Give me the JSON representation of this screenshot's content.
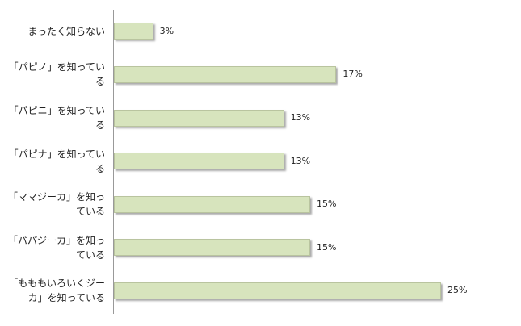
{
  "chart_data": {
    "type": "bar",
    "orientation": "horizontal",
    "categories": [
      "まったく知らない",
      "「パピノ」を知っている",
      "「パピニ」を知っている",
      "「パピナ」を知っている",
      "「ママジーカ」を知っている",
      "「パパジーカ」を知っている",
      "「もももいろいくジーカ」を知っている"
    ],
    "values": [
      3,
      17,
      13,
      13,
      15,
      15,
      25
    ],
    "value_labels": [
      "3%",
      "17%",
      "13%",
      "13%",
      "15%",
      "15%",
      "25%"
    ],
    "color": "#d7e4bd"
  }
}
